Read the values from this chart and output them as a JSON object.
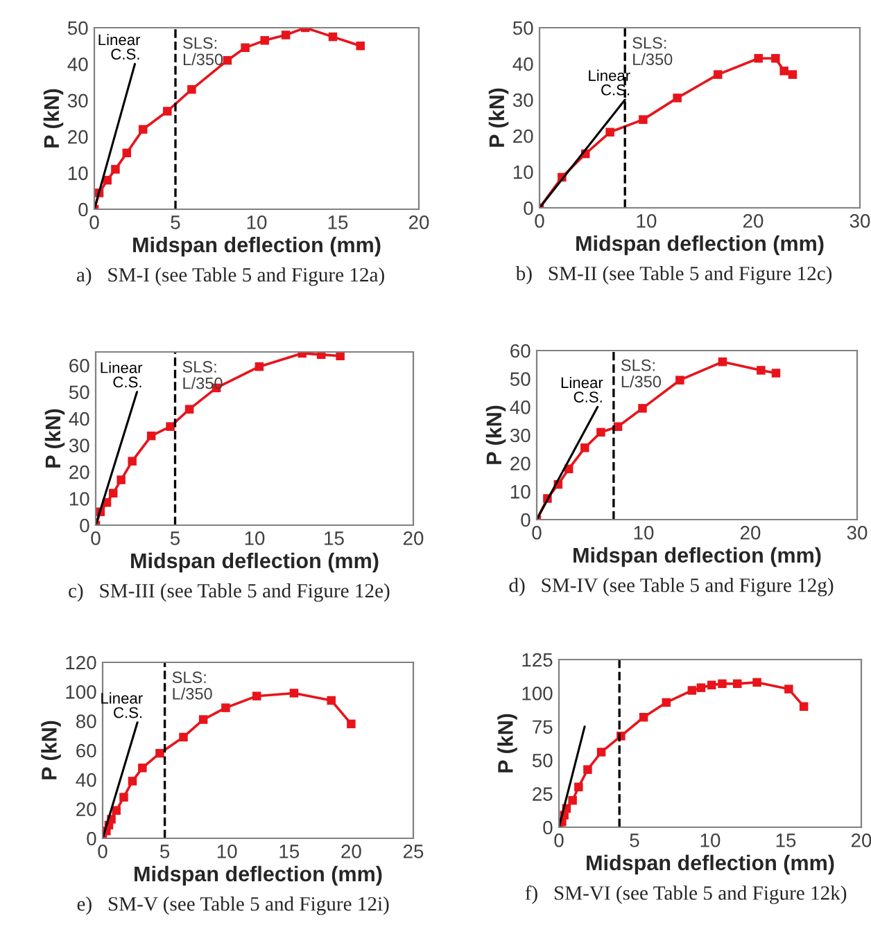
{
  "chart_data": [
    {
      "type": "line",
      "xlabel": "Midspan deflection (mm)",
      "ylabel": "P (kN)",
      "xlim": [
        0,
        20
      ],
      "ylim": [
        0,
        50
      ],
      "xticks": [
        0,
        5,
        10,
        15,
        20
      ],
      "yticks": [
        0,
        10,
        20,
        30,
        40,
        50
      ],
      "grid": false,
      "legend": false,
      "series": [
        {
          "color": "#e8141b",
          "marker": "square",
          "x": [
            0,
            0.3,
            0.8,
            1.3,
            2,
            3,
            4.5,
            6,
            8.2,
            9.3,
            10.5,
            11.8,
            13,
            14.7,
            16.4
          ],
          "values": [
            0,
            4.5,
            8,
            11,
            15.5,
            22,
            27,
            33,
            41,
            44.5,
            46.5,
            48,
            50,
            47.5,
            45
          ]
        },
        {
          "name": "Linear\nC.S.",
          "color": "#000000",
          "marker": "none",
          "x": [
            0,
            2.5
          ],
          "values": [
            0,
            40
          ]
        }
      ],
      "ref_lines": [
        {
          "axis": "x",
          "value": 5,
          "label": "SLS:\nL/350",
          "line_style": "dashed",
          "color": "#000000"
        }
      ],
      "annotations": [
        "a)   SM-I (see Table 5 and Figure 12a)"
      ]
    },
    {
      "type": "line",
      "xlabel": "Midspan deflection (mm)",
      "ylabel": "P (kN)",
      "xlim": [
        0,
        30
      ],
      "ylim": [
        0,
        50
      ],
      "xticks": [
        0,
        10,
        20,
        30
      ],
      "yticks": [
        0,
        10,
        20,
        30,
        40,
        50
      ],
      "grid": false,
      "legend": false,
      "series": [
        {
          "color": "#e8141b",
          "marker": "square",
          "x": [
            0,
            2.1,
            4.3,
            6.6,
            9.7,
            12.9,
            16.7,
            20.5,
            22.1,
            22.9,
            23.7
          ],
          "values": [
            0,
            8.5,
            15,
            21,
            24.5,
            30.5,
            37,
            41.5,
            41.5,
            38,
            37
          ]
        },
        {
          "name": "Linear\nC.S.",
          "color": "#000000",
          "marker": "none",
          "x": [
            0,
            8
          ],
          "values": [
            0,
            30
          ]
        }
      ],
      "ref_lines": [
        {
          "axis": "x",
          "value": 8,
          "label": "SLS:\nL/350",
          "line_style": "dashed",
          "color": "#000000"
        }
      ],
      "annotations": [
        "b)   SM-II (see Table 5 and Figure 12c)"
      ]
    },
    {
      "type": "line",
      "xlabel": "Midspan deflection (mm)",
      "ylabel": "P (kN)",
      "xlim": [
        0,
        20
      ],
      "ylim": [
        0,
        65
      ],
      "xticks": [
        0,
        5,
        10,
        15,
        20
      ],
      "yticks": [
        0,
        10,
        20,
        30,
        40,
        50,
        60
      ],
      "grid": false,
      "legend": false,
      "series": [
        {
          "color": "#e8141b",
          "marker": "square",
          "x": [
            0,
            0.3,
            0.7,
            1.1,
            1.6,
            2.3,
            3.5,
            4.7,
            5.9,
            7.6,
            10.3,
            13,
            14.2,
            15.4
          ],
          "values": [
            0,
            5,
            8.5,
            12,
            17,
            24,
            33.5,
            37,
            43.5,
            51.5,
            59.5,
            64.5,
            64,
            63.5
          ]
        },
        {
          "name": "Linear\nC.S.",
          "color": "#000000",
          "marker": "none",
          "x": [
            0,
            2.6
          ],
          "values": [
            0,
            50
          ]
        }
      ],
      "ref_lines": [
        {
          "axis": "x",
          "value": 5,
          "label": "SLS:\nL/350",
          "line_style": "dashed",
          "color": "#000000"
        }
      ],
      "annotations": [
        "c)   SM-III (see Table 5 and Figure 12e)"
      ]
    },
    {
      "type": "line",
      "xlabel": "Midspan deflection (mm)",
      "ylabel": "P (kN)",
      "xlim": [
        0,
        30
      ],
      "ylim": [
        0,
        60
      ],
      "xticks": [
        0,
        10,
        20,
        30
      ],
      "yticks": [
        0,
        10,
        20,
        30,
        40,
        50,
        60
      ],
      "grid": false,
      "legend": false,
      "series": [
        {
          "color": "#e8141b",
          "marker": "square",
          "x": [
            0,
            1,
            2,
            3,
            4.5,
            6,
            7.6,
            9.9,
            13.4,
            17.4,
            21,
            22.4
          ],
          "values": [
            0,
            7.5,
            12.5,
            18,
            25.5,
            31,
            33,
            39.5,
            49.5,
            56,
            53,
            52
          ]
        },
        {
          "name": "Linear\nC.S.",
          "color": "#000000",
          "marker": "none",
          "x": [
            0,
            5.7
          ],
          "values": [
            0,
            40
          ]
        }
      ],
      "ref_lines": [
        {
          "axis": "x",
          "value": 7.2,
          "label": "SLS:\nL/350",
          "line_style": "dashed",
          "color": "#000000"
        }
      ],
      "annotations": [
        "d)   SM-IV (see Table 5 and Figure 12g)"
      ]
    },
    {
      "type": "line",
      "xlabel": "Midspan deflection (mm)",
      "ylabel": "P (kN)",
      "xlim": [
        0,
        25
      ],
      "ylim": [
        0,
        120
      ],
      "xticks": [
        0,
        5,
        10,
        15,
        20,
        25
      ],
      "yticks": [
        0,
        20,
        40,
        60,
        80,
        100,
        120
      ],
      "grid": false,
      "legend": false,
      "series": [
        {
          "color": "#e8141b",
          "marker": "square",
          "x": [
            0,
            0.3,
            0.5,
            0.7,
            1.1,
            1.7,
            2.4,
            3.2,
            4.6,
            6.5,
            8.1,
            9.9,
            12.4,
            15.4,
            18.4,
            20
          ],
          "values": [
            0,
            5,
            9,
            13,
            19,
            28,
            39,
            48,
            58,
            69,
            81,
            89,
            97,
            99,
            94,
            78
          ]
        },
        {
          "name": "Linear\nC.S.",
          "color": "#000000",
          "marker": "none",
          "x": [
            0,
            2.8
          ],
          "values": [
            0,
            79
          ]
        }
      ],
      "ref_lines": [
        {
          "axis": "x",
          "value": 5,
          "label": "SLS:\nL/350",
          "line_style": "dashed",
          "color": "#000000"
        }
      ],
      "annotations": [
        "e)   SM-V (see Table 5 and Figure 12i)"
      ]
    },
    {
      "type": "line",
      "xlabel": "Midspan deflection (mm)",
      "ylabel": "P (kN)",
      "xlim": [
        0,
        20
      ],
      "ylim": [
        0,
        125
      ],
      "xticks": [
        0,
        5,
        10,
        15,
        20
      ],
      "yticks": [
        0,
        25,
        50,
        75,
        100,
        125
      ],
      "grid": false,
      "legend": false,
      "series": [
        {
          "color": "#e8141b",
          "marker": "square",
          "x": [
            0,
            0.2,
            0.35,
            0.5,
            0.9,
            1.3,
            1.9,
            2.8,
            4.1,
            5.6,
            7.1,
            8.8,
            9.4,
            10.1,
            10.8,
            11.8,
            13.1,
            15.2,
            16.2
          ],
          "values": [
            0,
            4,
            9,
            14,
            20,
            30,
            43,
            56,
            68,
            82,
            93,
            102,
            104,
            106,
            107,
            107,
            108,
            103,
            90
          ]
        },
        {
          "color": "#000000",
          "marker": "none",
          "x": [
            0,
            1.7
          ],
          "values": [
            0,
            75
          ]
        }
      ],
      "ref_lines": [
        {
          "axis": "x",
          "value": 4,
          "line_style": "dashed",
          "color": "#000000"
        }
      ],
      "annotations": [
        "f)   SM-VI (see Table 5 and Figure 12k)"
      ]
    }
  ]
}
